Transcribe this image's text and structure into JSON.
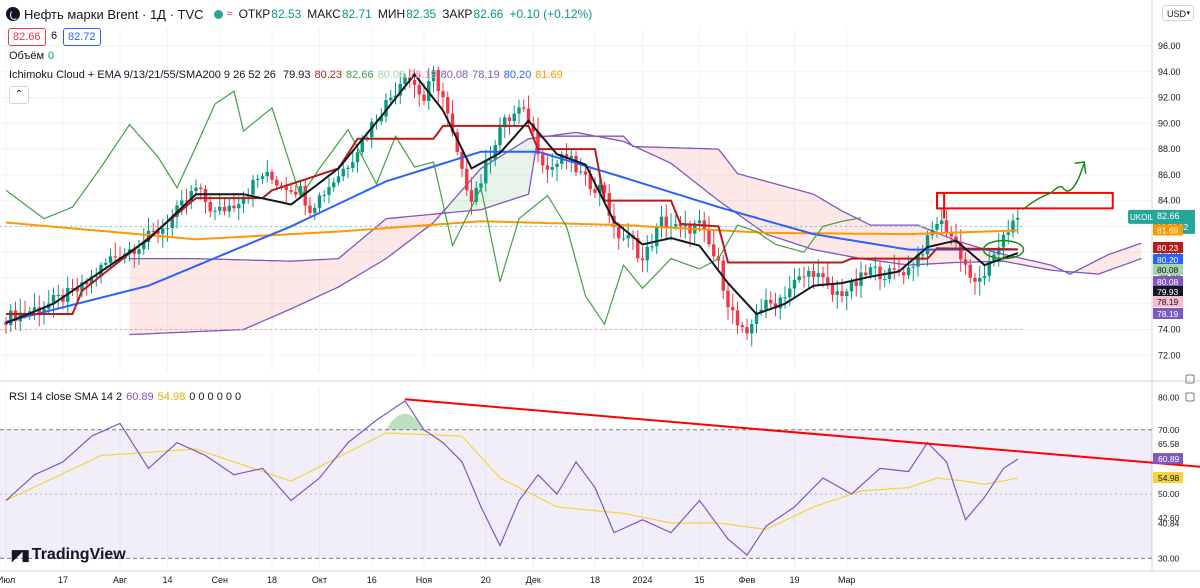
{
  "header": {
    "symbol_title": "Нефть марки Brent · 1Д · TVC",
    "ohlc": [
      {
        "label": "ОТКР",
        "value": "82.53"
      },
      {
        "label": "МАКС",
        "value": "82.71"
      },
      {
        "label": "МИН",
        "value": "82.35"
      },
      {
        "label": "ЗАКР",
        "value": "82.66"
      }
    ],
    "change": "+0.10 (+0.12%)",
    "bid": "82.66",
    "spread": "6",
    "ask": "82.72",
    "currency_button": "USD"
  },
  "indicators": {
    "volume_label": "Объём",
    "volume_value": "0",
    "ichimoku_label": "Ichimoku Cloud + EMA 9/13/21/55/SMA200 9 26 52 26",
    "ichimoku_values": [
      {
        "value": "79.93",
        "color": "#131722"
      },
      {
        "value": "80.23",
        "color": "#b71c1c"
      },
      {
        "value": "82.66",
        "color": "#43a047"
      },
      {
        "value": "80.08",
        "color": "#a5d6a7"
      },
      {
        "value": "78.19",
        "color": "#f48fb1"
      },
      {
        "value": "80.08",
        "color": "#7e57c2"
      },
      {
        "value": "78.19",
        "color": "#7e57c2"
      },
      {
        "value": "80.20",
        "color": "#2962ff"
      },
      {
        "value": "81.69",
        "color": "#ff9800"
      }
    ],
    "rsi_label": "RSI 14 close SMA 14 2",
    "rsi_value": "60.89",
    "rsi_sma_value": "54.98",
    "rsi_zeros": "0 0 0 0 0 0"
  },
  "colors": {
    "up": "#089981",
    "down": "#f23645",
    "tenkan": "#131722",
    "kijun": "#b71c1c",
    "chikou": "#43a047",
    "ema55": "#2962ff",
    "sma200": "#ff9800",
    "cloud_line": "#7e57c2",
    "rsi": "#7e57c2",
    "rsi_sma": "#f5d33b",
    "annotation_red": "#ff0000",
    "annotation_green": "#1b8a1b"
  },
  "chart_data": [
    {
      "type": "candlestick",
      "symbol": "UKOIL",
      "timeframe": "1Д",
      "x_ticks": [
        "Июл",
        "17",
        "Авг",
        "14",
        "Сен",
        "18",
        "Окт",
        "16",
        "Ноя",
        "20",
        "Дек",
        "18",
        "2024",
        "15",
        "Фев",
        "19",
        "Мар"
      ],
      "y_ticks": [
        96.0,
        94.0,
        92.0,
        90.0,
        88.0,
        86.0,
        84.0,
        82.0,
        80.0,
        78.0,
        76.0,
        74.0,
        72.0
      ],
      "ylim": [
        70.7,
        97.4
      ],
      "price_labels": [
        {
          "value": "82.66",
          "color": "#26a69a",
          "text_color": "#ffffff",
          "ticker": "UKOIL",
          "countdown": "16:50:32"
        },
        {
          "value": "81.69",
          "color": "#ff9800",
          "text_color": "#ffffff"
        },
        {
          "value": "80.23",
          "color": "#b71c1c",
          "text_color": "#ffffff"
        },
        {
          "value": "80.20",
          "color": "#2962ff",
          "text_color": "#ffffff"
        },
        {
          "value": "80.08",
          "color": "#a5d6a7",
          "text_color": "#131722"
        },
        {
          "value": "80.08",
          "color": "#7e57c2",
          "text_color": "#ffffff"
        },
        {
          "value": "79.93",
          "color": "#131722",
          "text_color": "#ffffff"
        },
        {
          "value": "78.19",
          "color": "#f8bbd0",
          "text_color": "#131722"
        },
        {
          "value": "78.19",
          "color": "#7e57c2",
          "text_color": "#ffffff"
        }
      ],
      "close_anchors": [
        [
          0,
          74.9
        ],
        [
          8,
          75.8
        ],
        [
          16,
          77.2
        ],
        [
          22,
          79.5
        ],
        [
          28,
          80.6
        ],
        [
          34,
          82.2
        ],
        [
          40,
          84.9
        ],
        [
          44,
          83.0
        ],
        [
          48,
          83.8
        ],
        [
          54,
          86.0
        ],
        [
          58,
          85.3
        ],
        [
          62,
          84.8
        ],
        [
          64,
          83.5
        ],
        [
          66,
          84.3
        ],
        [
          72,
          86.9
        ],
        [
          78,
          90.5
        ],
        [
          82,
          92.6
        ],
        [
          84,
          94.0
        ],
        [
          86,
          93.0
        ],
        [
          88,
          91.8
        ],
        [
          90,
          93.8
        ],
        [
          92,
          92.0
        ],
        [
          94,
          89.0
        ],
        [
          96,
          86.0
        ],
        [
          98,
          84.4
        ],
        [
          100,
          85.6
        ],
        [
          104,
          89.7
        ],
        [
          108,
          91.0
        ],
        [
          110,
          90.3
        ],
        [
          112,
          88.1
        ],
        [
          114,
          86.4
        ],
        [
          118,
          87.4
        ],
        [
          122,
          85.5
        ],
        [
          126,
          84.8
        ],
        [
          128,
          81.5
        ],
        [
          132,
          80.8
        ],
        [
          134,
          79.3
        ],
        [
          138,
          82.4
        ],
        [
          142,
          81.7
        ],
        [
          146,
          82.1
        ],
        [
          150,
          78.9
        ],
        [
          152,
          76.2
        ],
        [
          154,
          74.3
        ],
        [
          156,
          73.2
        ],
        [
          158,
          75.6
        ],
        [
          162,
          76.1
        ],
        [
          166,
          77.6
        ],
        [
          170,
          78.6
        ],
        [
          174,
          76.7
        ],
        [
          178,
          77.2
        ],
        [
          182,
          78.6
        ],
        [
          186,
          78.3
        ],
        [
          190,
          78.7
        ],
        [
          194,
          80.8
        ],
        [
          196,
          82.4
        ],
        [
          198,
          81.9
        ],
        [
          200,
          80.6
        ],
        [
          202,
          79.0
        ],
        [
          204,
          77.3
        ],
        [
          206,
          78.4
        ],
        [
          208,
          79.3
        ],
        [
          210,
          81.6
        ],
        [
          212,
          82.1
        ],
        [
          213,
          82.66
        ]
      ],
      "ema55_anchors": [
        [
          0,
          74.6
        ],
        [
          30,
          77.4
        ],
        [
          60,
          82.0
        ],
        [
          80,
          85.5
        ],
        [
          100,
          87.8
        ],
        [
          112,
          87.8
        ],
        [
          130,
          85.8
        ],
        [
          150,
          83.5
        ],
        [
          170,
          81.4
        ],
        [
          190,
          80.2
        ],
        [
          213,
          80.2
        ]
      ],
      "sma200_anchors": [
        [
          0,
          82.3
        ],
        [
          40,
          81.0
        ],
        [
          70,
          81.6
        ],
        [
          100,
          82.4
        ],
        [
          130,
          82.1
        ],
        [
          160,
          81.5
        ],
        [
          190,
          81.4
        ],
        [
          213,
          81.69
        ]
      ],
      "tenkan_anchors": [
        [
          0,
          74.5
        ],
        [
          10,
          76.0
        ],
        [
          20,
          78.5
        ],
        [
          30,
          81.0
        ],
        [
          40,
          84.5
        ],
        [
          50,
          84.5
        ],
        [
          60,
          83.7
        ],
        [
          70,
          86.5
        ],
        [
          80,
          91.0
        ],
        [
          86,
          93.8
        ],
        [
          92,
          91.0
        ],
        [
          98,
          86.5
        ],
        [
          104,
          87.7
        ],
        [
          110,
          90.2
        ],
        [
          116,
          87.6
        ],
        [
          122,
          86.8
        ],
        [
          128,
          82.4
        ],
        [
          134,
          80.6
        ],
        [
          140,
          81.1
        ],
        [
          146,
          80.5
        ],
        [
          152,
          77.6
        ],
        [
          158,
          75.2
        ],
        [
          164,
          76.0
        ],
        [
          170,
          77.4
        ],
        [
          176,
          77.6
        ],
        [
          182,
          78.1
        ],
        [
          188,
          78.5
        ],
        [
          194,
          80.4
        ],
        [
          200,
          80.9
        ],
        [
          206,
          79.0
        ],
        [
          213,
          79.93
        ]
      ],
      "kijun_anchors": [
        [
          0,
          75.2
        ],
        [
          14,
          75.2
        ],
        [
          16,
          77.0
        ],
        [
          28,
          80.5
        ],
        [
          40,
          84.2
        ],
        [
          54,
          84.2
        ],
        [
          56,
          84.8
        ],
        [
          70,
          86.5
        ],
        [
          74,
          88.8
        ],
        [
          90,
          88.8
        ],
        [
          92,
          89.8
        ],
        [
          110,
          89.8
        ],
        [
          112,
          88.0
        ],
        [
          124,
          88.0
        ],
        [
          126,
          84.0
        ],
        [
          140,
          84.0
        ],
        [
          142,
          82.2
        ],
        [
          150,
          82.0
        ],
        [
          152,
          79.2
        ],
        [
          176,
          79.2
        ],
        [
          178,
          79.5
        ],
        [
          194,
          79.5
        ],
        [
          196,
          80.3
        ],
        [
          213,
          80.23
        ]
      ],
      "chikou_anchors": [
        [
          0,
          84.8
        ],
        [
          8,
          82.6
        ],
        [
          14,
          83.5
        ],
        [
          20,
          86.6
        ],
        [
          26,
          89.9
        ],
        [
          32,
          87.4
        ],
        [
          36,
          85.0
        ],
        [
          40,
          88.2
        ],
        [
          44,
          91.5
        ],
        [
          48,
          92.5
        ],
        [
          50,
          89.4
        ],
        [
          56,
          91.2
        ],
        [
          62,
          84.3
        ],
        [
          66,
          86.5
        ],
        [
          72,
          89.5
        ],
        [
          78,
          85.3
        ],
        [
          82,
          89.0
        ],
        [
          86,
          86.6
        ],
        [
          90,
          87.0
        ],
        [
          94,
          80.5
        ],
        [
          100,
          85.0
        ],
        [
          104,
          77.7
        ],
        [
          108,
          82.6
        ],
        [
          114,
          84.4
        ],
        [
          118,
          82.0
        ],
        [
          122,
          76.6
        ],
        [
          126,
          74.4
        ],
        [
          130,
          79.0
        ],
        [
          134,
          77.2
        ],
        [
          140,
          79.5
        ],
        [
          146,
          78.7
        ],
        [
          150,
          79.5
        ],
        [
          154,
          82.1
        ],
        [
          158,
          81.6
        ],
        [
          162,
          80.6
        ],
        [
          168,
          80.0
        ],
        [
          172,
          82.0
        ],
        [
          176,
          82.4
        ],
        [
          180,
          82.66
        ]
      ],
      "span_a_anchors": [
        [
          26,
          73.6
        ],
        [
          50,
          74.0
        ],
        [
          60,
          75.6
        ],
        [
          70,
          77.3
        ],
        [
          80,
          79.5
        ],
        [
          90,
          82.3
        ],
        [
          100,
          86.5
        ],
        [
          110,
          88.8
        ],
        [
          120,
          89.3
        ],
        [
          130,
          88.6
        ],
        [
          140,
          86.9
        ],
        [
          150,
          84.0
        ],
        [
          160,
          81.4
        ],
        [
          170,
          80.2
        ],
        [
          180,
          79.5
        ],
        [
          190,
          79.0
        ],
        [
          200,
          79.2
        ],
        [
          210,
          79.3
        ],
        [
          220,
          78.6
        ],
        [
          230,
          78.3
        ],
        [
          239,
          79.5
        ]
      ],
      "span_b_anchors": [
        [
          26,
          79.5
        ],
        [
          40,
          79.5
        ],
        [
          60,
          79.3
        ],
        [
          70,
          79.5
        ],
        [
          80,
          82.6
        ],
        [
          100,
          83.3
        ],
        [
          110,
          84.5
        ],
        [
          112,
          89.0
        ],
        [
          130,
          89.0
        ],
        [
          132,
          88.2
        ],
        [
          150,
          88.0
        ],
        [
          154,
          86.1
        ],
        [
          170,
          84.5
        ],
        [
          176,
          83.2
        ],
        [
          182,
          82.1
        ],
        [
          188,
          82.1
        ],
        [
          192,
          82.1
        ],
        [
          200,
          80.9
        ],
        [
          208,
          80.0
        ],
        [
          220,
          79.0
        ],
        [
          224,
          78.3
        ],
        [
          232,
          79.8
        ],
        [
          239,
          80.7
        ]
      ],
      "dashed_levels": [
        82.0,
        74.0
      ]
    },
    {
      "type": "line",
      "name": "RSI",
      "y_ticks": [
        80.0,
        70.0,
        65.58,
        60.89,
        54.98,
        50.0,
        42.6,
        40.84,
        30.0
      ],
      "ylim": [
        27,
        83
      ],
      "bands": [
        70,
        30
      ],
      "rsi_anchors": [
        [
          0,
          48
        ],
        [
          6,
          56
        ],
        [
          12,
          60
        ],
        [
          18,
          68
        ],
        [
          24,
          72
        ],
        [
          30,
          58
        ],
        [
          36,
          66
        ],
        [
          42,
          62
        ],
        [
          48,
          56
        ],
        [
          54,
          58
        ],
        [
          60,
          48
        ],
        [
          66,
          55
        ],
        [
          72,
          66
        ],
        [
          78,
          73
        ],
        [
          84,
          79
        ],
        [
          88,
          70
        ],
        [
          92,
          66
        ],
        [
          96,
          60
        ],
        [
          100,
          46
        ],
        [
          104,
          34
        ],
        [
          108,
          48
        ],
        [
          112,
          56
        ],
        [
          116,
          50
        ],
        [
          120,
          60
        ],
        [
          124,
          52
        ],
        [
          128,
          38
        ],
        [
          134,
          42
        ],
        [
          140,
          38
        ],
        [
          146,
          48
        ],
        [
          152,
          36
        ],
        [
          156,
          31
        ],
        [
          160,
          40
        ],
        [
          166,
          46
        ],
        [
          172,
          55
        ],
        [
          178,
          50
        ],
        [
          184,
          58
        ],
        [
          190,
          57
        ],
        [
          194,
          66
        ],
        [
          198,
          60
        ],
        [
          202,
          42
        ],
        [
          206,
          49
        ],
        [
          210,
          58
        ],
        [
          213,
          60.89
        ]
      ],
      "rsi_sma_anchors": [
        [
          0,
          48
        ],
        [
          20,
          62
        ],
        [
          40,
          64
        ],
        [
          60,
          54
        ],
        [
          80,
          69
        ],
        [
          96,
          68
        ],
        [
          104,
          55
        ],
        [
          116,
          46
        ],
        [
          130,
          44
        ],
        [
          140,
          41
        ],
        [
          150,
          41
        ],
        [
          160,
          39
        ],
        [
          170,
          46
        ],
        [
          180,
          51
        ],
        [
          190,
          52
        ],
        [
          196,
          55
        ],
        [
          202,
          54
        ],
        [
          206,
          53
        ],
        [
          213,
          54.98
        ]
      ]
    }
  ]
}
